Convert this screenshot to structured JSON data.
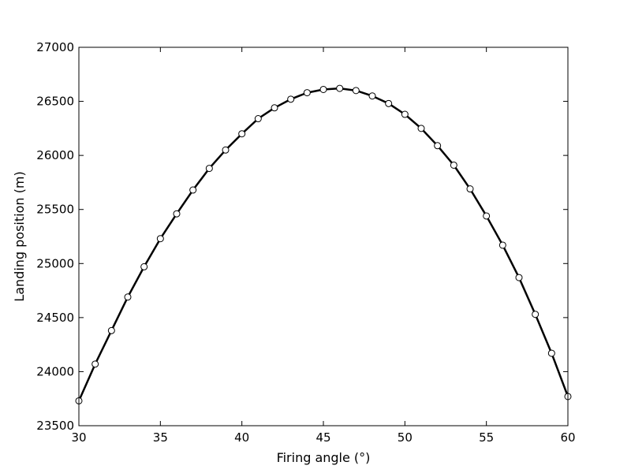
{
  "chart_data": {
    "type": "line",
    "title": "",
    "xlabel": "Firing angle (°)",
    "ylabel": "Landing position (m)",
    "xlim": [
      30,
      60
    ],
    "ylim": [
      23500,
      27000
    ],
    "x_ticks": [
      30,
      35,
      40,
      45,
      50,
      55,
      60
    ],
    "y_ticks": [
      23500,
      24000,
      24500,
      25000,
      25500,
      26000,
      26500,
      27000
    ],
    "grid": false,
    "legend": "none",
    "series": [
      {
        "color": "#000000",
        "marker": "circle-open",
        "x": [
          30,
          31,
          32,
          33,
          34,
          35,
          36,
          37,
          38,
          39,
          40,
          41,
          42,
          43,
          44,
          45,
          46,
          47,
          48,
          49,
          50,
          51,
          52,
          53,
          54,
          55,
          56,
          57,
          58,
          59,
          60
        ],
        "y": [
          23730,
          24070,
          24380,
          24690,
          24970,
          25230,
          25460,
          25680,
          25880,
          26050,
          26200,
          26340,
          26440,
          26520,
          26580,
          26610,
          26620,
          26600,
          26550,
          26480,
          26380,
          26250,
          26090,
          25910,
          25690,
          25440,
          25170,
          24870,
          24530,
          24170,
          23770
        ]
      }
    ]
  }
}
